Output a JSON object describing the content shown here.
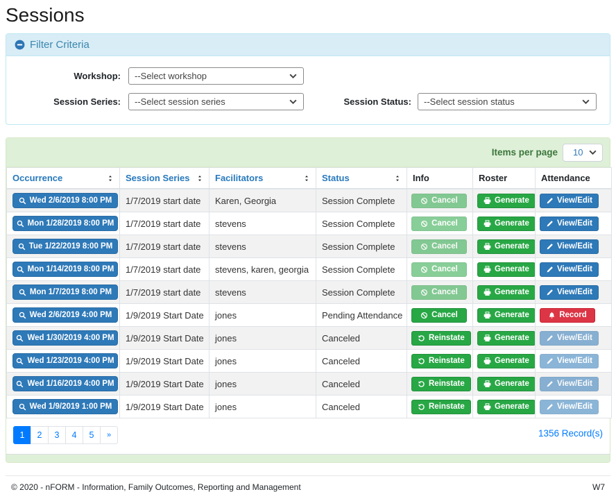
{
  "page": {
    "title": "Sessions",
    "footer": {
      "copyright": "© 2020 - nFORM - Information, Family Outcomes, Reporting and Management",
      "version": "W7"
    }
  },
  "filter": {
    "title": "Filter Criteria",
    "fields": [
      {
        "label": "Workshop:",
        "value": "--Select workshop"
      },
      {
        "label": "Session Series:",
        "value": "--Select session series"
      },
      {
        "label": "Session Status:",
        "value": "--Select session status"
      }
    ]
  },
  "table": {
    "items_per_page_label": "Items per page",
    "items_per_page_value": "10",
    "columns": [
      {
        "label": "Occurrence",
        "sortable": true
      },
      {
        "label": "Session Series",
        "sortable": true
      },
      {
        "label": "Facilitators",
        "sortable": true
      },
      {
        "label": "Status",
        "sortable": true
      },
      {
        "label": "Info",
        "sortable": false
      },
      {
        "label": "Roster",
        "sortable": false
      },
      {
        "label": "Attendance",
        "sortable": false
      }
    ],
    "rows": [
      {
        "occurrence": "Wed 2/6/2019 8:00 PM",
        "session_series": "1/7/2019 start date",
        "facilitators": "Karen, Georgia",
        "status": "Session Complete",
        "info_action": {
          "label": "Cancel",
          "icon": "ban-icon",
          "variant": "success",
          "disabled": true
        },
        "roster_action": {
          "label": "Generate",
          "icon": "printer-icon",
          "variant": "success",
          "disabled": false
        },
        "attendance_action": {
          "label": "View/Edit",
          "icon": "pencil-icon",
          "variant": "primary",
          "disabled": false
        }
      },
      {
        "occurrence": "Mon 1/28/2019 8:00 PM",
        "session_series": "1/7/2019 start date",
        "facilitators": "stevens",
        "status": "Session Complete",
        "info_action": {
          "label": "Cancel",
          "icon": "ban-icon",
          "variant": "success",
          "disabled": true
        },
        "roster_action": {
          "label": "Generate",
          "icon": "printer-icon",
          "variant": "success",
          "disabled": false
        },
        "attendance_action": {
          "label": "View/Edit",
          "icon": "pencil-icon",
          "variant": "primary",
          "disabled": false
        }
      },
      {
        "occurrence": "Tue 1/22/2019 8:00 PM",
        "session_series": "1/7/2019 start date",
        "facilitators": "stevens",
        "status": "Session Complete",
        "info_action": {
          "label": "Cancel",
          "icon": "ban-icon",
          "variant": "success",
          "disabled": true
        },
        "roster_action": {
          "label": "Generate",
          "icon": "printer-icon",
          "variant": "success",
          "disabled": false
        },
        "attendance_action": {
          "label": "View/Edit",
          "icon": "pencil-icon",
          "variant": "primary",
          "disabled": false
        }
      },
      {
        "occurrence": "Mon 1/14/2019 8:00 PM",
        "session_series": "1/7/2019 start date",
        "facilitators": "stevens, karen, georgia",
        "status": "Session Complete",
        "info_action": {
          "label": "Cancel",
          "icon": "ban-icon",
          "variant": "success",
          "disabled": true
        },
        "roster_action": {
          "label": "Generate",
          "icon": "printer-icon",
          "variant": "success",
          "disabled": false
        },
        "attendance_action": {
          "label": "View/Edit",
          "icon": "pencil-icon",
          "variant": "primary",
          "disabled": false
        }
      },
      {
        "occurrence": "Mon 1/7/2019 8:00 PM",
        "session_series": "1/7/2019 start date",
        "facilitators": "stevens",
        "status": "Session Complete",
        "info_action": {
          "label": "Cancel",
          "icon": "ban-icon",
          "variant": "success",
          "disabled": true
        },
        "roster_action": {
          "label": "Generate",
          "icon": "printer-icon",
          "variant": "success",
          "disabled": false
        },
        "attendance_action": {
          "label": "View/Edit",
          "icon": "pencil-icon",
          "variant": "primary",
          "disabled": false
        }
      },
      {
        "occurrence": "Wed 2/6/2019 4:00 PM",
        "session_series": "1/9/2019 Start Date",
        "facilitators": "jones",
        "status": "Pending Attendance",
        "info_action": {
          "label": "Cancel",
          "icon": "ban-icon",
          "variant": "success",
          "disabled": false
        },
        "roster_action": {
          "label": "Generate",
          "icon": "printer-icon",
          "variant": "success",
          "disabled": false
        },
        "attendance_action": {
          "label": "Record",
          "icon": "bell-icon",
          "variant": "danger",
          "disabled": false
        }
      },
      {
        "occurrence": "Wed 1/30/2019 4:00 PM",
        "session_series": "1/9/2019 Start Date",
        "facilitators": "jones",
        "status": "Canceled",
        "info_action": {
          "label": "Reinstate",
          "icon": "undo-icon",
          "variant": "success",
          "disabled": false
        },
        "roster_action": {
          "label": "Generate",
          "icon": "printer-icon",
          "variant": "success",
          "disabled": false
        },
        "attendance_action": {
          "label": "View/Edit",
          "icon": "pencil-icon",
          "variant": "primary",
          "disabled": true
        }
      },
      {
        "occurrence": "Wed 1/23/2019 4:00 PM",
        "session_series": "1/9/2019 Start Date",
        "facilitators": "jones",
        "status": "Canceled",
        "info_action": {
          "label": "Reinstate",
          "icon": "undo-icon",
          "variant": "success",
          "disabled": false
        },
        "roster_action": {
          "label": "Generate",
          "icon": "printer-icon",
          "variant": "success",
          "disabled": false
        },
        "attendance_action": {
          "label": "View/Edit",
          "icon": "pencil-icon",
          "variant": "primary",
          "disabled": true
        }
      },
      {
        "occurrence": "Wed 1/16/2019 4:00 PM",
        "session_series": "1/9/2019 Start Date",
        "facilitators": "jones",
        "status": "Canceled",
        "info_action": {
          "label": "Reinstate",
          "icon": "undo-icon",
          "variant": "success",
          "disabled": false
        },
        "roster_action": {
          "label": "Generate",
          "icon": "printer-icon",
          "variant": "success",
          "disabled": false
        },
        "attendance_action": {
          "label": "View/Edit",
          "icon": "pencil-icon",
          "variant": "primary",
          "disabled": true
        }
      },
      {
        "occurrence": "Wed 1/9/2019 1:00 PM",
        "session_series": "1/9/2019 Start Date",
        "facilitators": "jones",
        "status": "Canceled",
        "info_action": {
          "label": "Reinstate",
          "icon": "undo-icon",
          "variant": "success",
          "disabled": false
        },
        "roster_action": {
          "label": "Generate",
          "icon": "printer-icon",
          "variant": "success",
          "disabled": false
        },
        "attendance_action": {
          "label": "View/Edit",
          "icon": "pencil-icon",
          "variant": "primary",
          "disabled": true
        }
      }
    ],
    "pagination": {
      "pages": [
        "1",
        "2",
        "3",
        "4",
        "5",
        "»"
      ],
      "active": "1"
    },
    "records_text": "1356 Record(s)"
  },
  "colors": {
    "button_blue": "#2e79b8",
    "link_blue": "#007bff",
    "success_green": "#28a745",
    "danger_red": "#dc3545",
    "panel_header_bg": "#d9edf7",
    "panel_header_text": "#3a87ad",
    "panel_border": "#bce8f1",
    "table_band_bg": "#dff0d8",
    "table_band_text": "#3c763d",
    "table_border": "#d6e9c6",
    "stripe_gray": "#f2f2f2"
  }
}
